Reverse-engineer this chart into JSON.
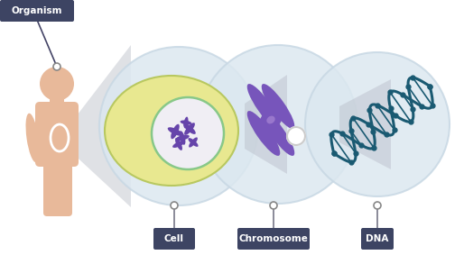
{
  "bg_color": "#ffffff",
  "organism_label": "Organism",
  "cell_label": "Cell",
  "chromosome_label": "Chromosome",
  "dna_label": "DNA",
  "label_bg": "#3d4463",
  "label_fg": "#ffffff",
  "human_color": "#e8b99a",
  "cell_circle_fill": "#dce8f0",
  "cell_circle_edge": "#c8d8e4",
  "cytoplasm_fill": "#e8e890",
  "cytoplasm_edge": "#b8c860",
  "nucleus_fill": "#f0eef4",
  "nucleus_edge": "#88c888",
  "chromosome_color": "#7755bb",
  "dna_color": "#1a5a72",
  "connector_color": "#888888",
  "zoom_triangle_fill": "#c8ccd8",
  "mini_chrom_color": "#6644aa"
}
